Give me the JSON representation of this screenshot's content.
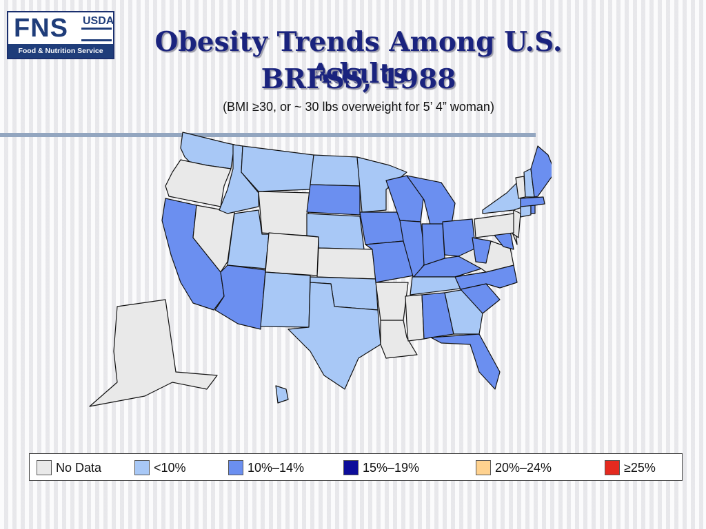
{
  "logo": {
    "mark": "FNS",
    "agency": "USDA",
    "tagline": "Food & Nutrition Service"
  },
  "title_line1": "Obesity Trends Among U.S. Adults",
  "title_line2": "BRFSS, 1988",
  "subtitle": "(BMI ≥30, or ~ 30 lbs overweight for 5’ 4” woman)",
  "colors": {
    "no_data": "#e9e9e9",
    "lt10": "#a8c8f6",
    "10_14": "#6b8ff0",
    "15_19": "#0d0d9a",
    "20_24": "#ffd28f",
    "ge25": "#e52a1f"
  },
  "legend": [
    {
      "label": "No Data",
      "color": "#e9e9e9"
    },
    {
      "label": "<10%",
      "color": "#a8c8f6"
    },
    {
      "label": "10%–14%",
      "color": "#6b8ff0"
    },
    {
      "label": "15%–19%",
      "color": "#0d0d9a"
    },
    {
      "label": "20%–24%",
      "color": "#ffd28f"
    },
    {
      "label": "≥25%",
      "color": "#e52a1f"
    }
  ],
  "states": {
    "WA": "<10%",
    "OR": "No Data",
    "CA": "10%–14%",
    "NV": "No Data",
    "ID": "<10%",
    "MT": "<10%",
    "WY": "No Data",
    "UT": "<10%",
    "AZ": "10%–14%",
    "CO": "No Data",
    "NM": "<10%",
    "ND": "<10%",
    "SD": "10%–14%",
    "NE": "<10%",
    "KS": "No Data",
    "OK": "<10%",
    "TX": "<10%",
    "MN": "<10%",
    "IA": "10%–14%",
    "MO": "10%–14%",
    "AR": "No Data",
    "LA": "No Data",
    "WI": "10%–14%",
    "IL": "10%–14%",
    "MI": "10%–14%",
    "IN": "10%–14%",
    "OH": "10%–14%",
    "KY": "10%–14%",
    "TN": "<10%",
    "MS": "No Data",
    "AL": "10%–14%",
    "GA": "<10%",
    "FL": "10%–14%",
    "SC": "10%–14%",
    "NC": "10%–14%",
    "VA": "No Data",
    "WV": "10%–14%",
    "MD": "10%–14%",
    "DE": "No Data",
    "NJ": "No Data",
    "PA": "No Data",
    "NY": "<10%",
    "CT": "<10%",
    "RI": "10%–14%",
    "MA": "10%–14%",
    "VT": "No Data",
    "NH": "<10%",
    "ME": "10%–14%",
    "AK": "No Data",
    "HI": "<10%"
  }
}
